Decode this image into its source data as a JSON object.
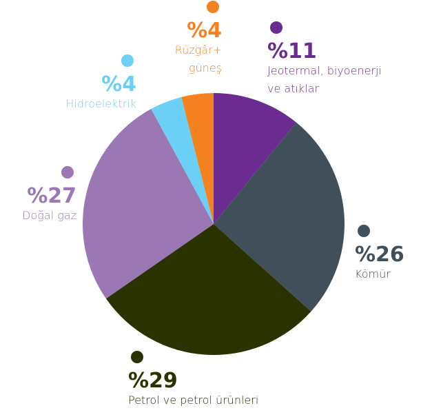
{
  "chart_data": {
    "type": "pie",
    "categories": [
      "Jeotermal, biyoenerji ve atıklar",
      "Kömür",
      "Petrol ve petrol ürünleri",
      "Doğal gaz",
      "Hidroelektrik",
      "Rüzgâr+ güneş"
    ],
    "values": [
      11,
      26,
      29,
      27,
      4,
      4
    ],
    "value_labels": [
      "%11",
      "%26",
      "%29",
      "%27",
      "%4",
      "%4"
    ],
    "colors": [
      "#6a2c91",
      "#414f5a",
      "#2a3300",
      "#9b77b3",
      "#6ccff6",
      "#f58220"
    ]
  }
}
